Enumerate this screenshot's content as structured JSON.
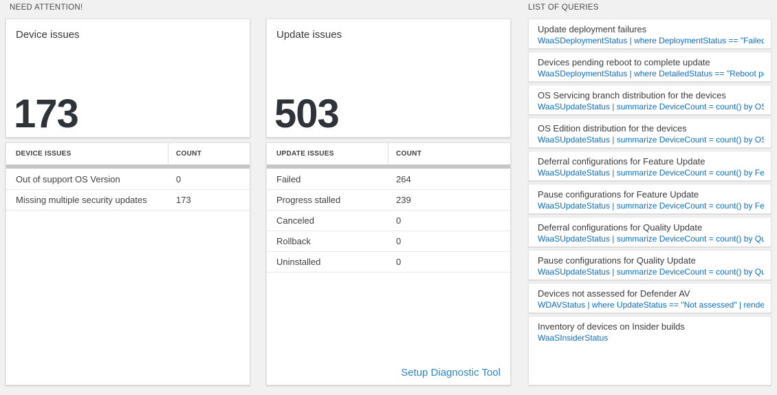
{
  "sections": {
    "need_attention_title": "NEED ATTENTION!",
    "queries_title": "LIST OF QUERIES"
  },
  "device_card": {
    "title": "Device issues",
    "count": "173"
  },
  "update_card": {
    "title": "Update issues",
    "count": "503"
  },
  "device_table": {
    "headers": {
      "issues": "DEVICE ISSUES",
      "count": "COUNT"
    },
    "rows": [
      {
        "label": "Out of support OS Version",
        "count": "0"
      },
      {
        "label": "Missing multiple security updates",
        "count": "173"
      }
    ]
  },
  "update_table": {
    "headers": {
      "issues": "UPDATE ISSUES",
      "count": "COUNT"
    },
    "rows": [
      {
        "label": "Failed",
        "count": "264"
      },
      {
        "label": "Progress stalled",
        "count": "239"
      },
      {
        "label": "Canceled",
        "count": "0"
      },
      {
        "label": "Rollback",
        "count": "0"
      },
      {
        "label": "Uninstalled",
        "count": "0"
      }
    ],
    "footer_link": "Setup Diagnostic Tool"
  },
  "queries": [
    {
      "name": "Update deployment failures",
      "query": "WaaSDeploymentStatus | where DeploymentStatus == \"Failed\" |..."
    },
    {
      "name": "Devices pending reboot to complete update",
      "query": "WaaSDeploymentStatus | where DetailedStatus == \"Reboot pend..."
    },
    {
      "name": "OS Servicing branch distribution for the devices",
      "query": "WaaSUpdateStatus | summarize DeviceCount = count() by OSSer..."
    },
    {
      "name": "OS Edition distribution for the devices",
      "query": "WaaSUpdateStatus | summarize DeviceCount = count() by OSEdit..."
    },
    {
      "name": "Deferral configurations for Feature Update",
      "query": "WaaSUpdateStatus | summarize DeviceCount = count() by Featur..."
    },
    {
      "name": "Pause configurations for Feature Update",
      "query": "WaaSUpdateStatus | summarize DeviceCount = count() by Featur..."
    },
    {
      "name": "Deferral configurations for Quality Update",
      "query": "WaaSUpdateStatus | summarize DeviceCount = count() by Qualit..."
    },
    {
      "name": "Pause configurations for Quality Update",
      "query": "WaaSUpdateStatus | summarize DeviceCount = count() by Qualit..."
    },
    {
      "name": "Devices not assessed for Defender AV",
      "query": "WDAVStatus | where UpdateStatus == \"Not assessed\" | render ta..."
    },
    {
      "name": "Inventory of devices on Insider builds",
      "query": "WaaSInsiderStatus"
    }
  ],
  "colors": {
    "page_background": "#f1f1f1",
    "panel_background": "#ffffff",
    "big_number": "#2e3339",
    "query_link_blue": "#0e6ebe",
    "footer_link_blue": "#2b86c9",
    "scroll_strip_gray": "#c6c6c6"
  }
}
